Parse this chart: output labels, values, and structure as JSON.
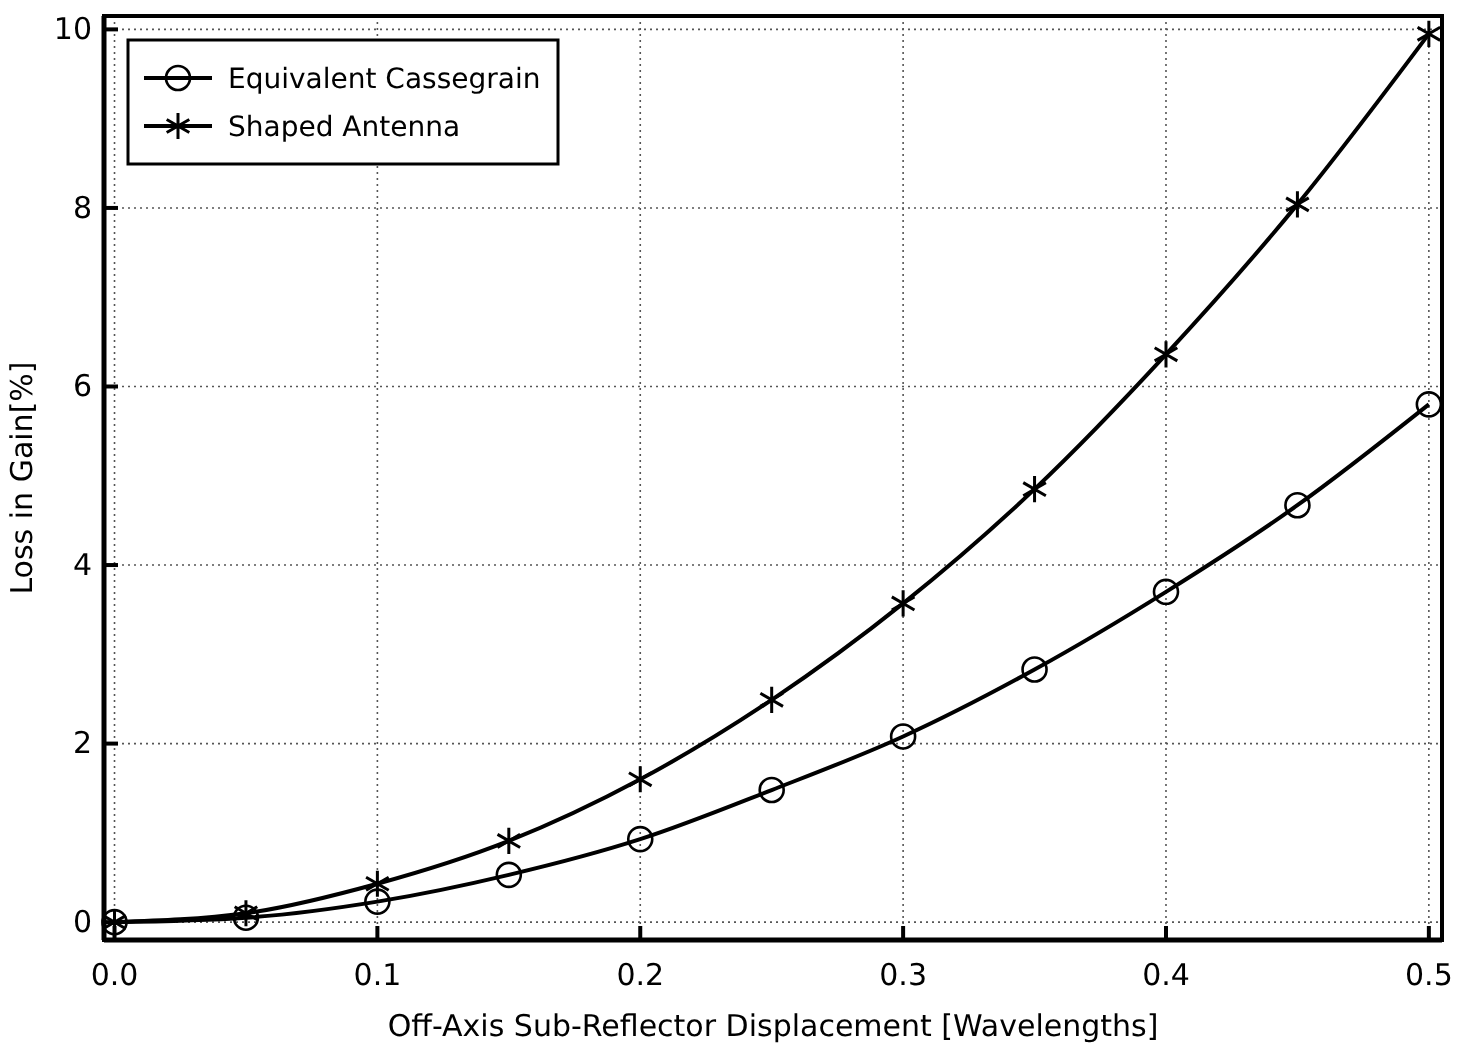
{
  "chart_data": {
    "type": "line",
    "xlabel": "Off-Axis Sub-Reflector Displacement [Wavelengths]",
    "ylabel": "Loss in Gain[%]",
    "x": [
      0,
      0.05,
      0.1,
      0.15,
      0.2,
      0.25,
      0.3,
      0.35,
      0.4,
      0.45,
      0.5
    ],
    "series": [
      {
        "name": "Equivalent Cassegrain",
        "color": "#000000",
        "marker": "circle",
        "values": [
          0,
          0.05,
          0.23,
          0.53,
          0.93,
          1.48,
          2.08,
          2.83,
          3.7,
          4.67,
          5.8
        ]
      },
      {
        "name": "Shaped Antenna",
        "color": "#000000",
        "marker": "cross",
        "values": [
          0,
          0.1,
          0.43,
          0.91,
          1.6,
          2.49,
          3.57,
          4.85,
          6.36,
          8.04,
          9.95
        ]
      }
    ],
    "xlim": [
      -0.004,
      0.505
    ],
    "ylim": [
      -0.2,
      10.15
    ],
    "xticks": [
      {
        "value": 0,
        "label": "0.0"
      },
      0.1,
      0.2,
      0.3,
      0.4,
      0.5
    ],
    "yticks": [
      0,
      2,
      4,
      6,
      8,
      10
    ],
    "grid": true,
    "legend": "top left",
    "line_style": "solid"
  }
}
